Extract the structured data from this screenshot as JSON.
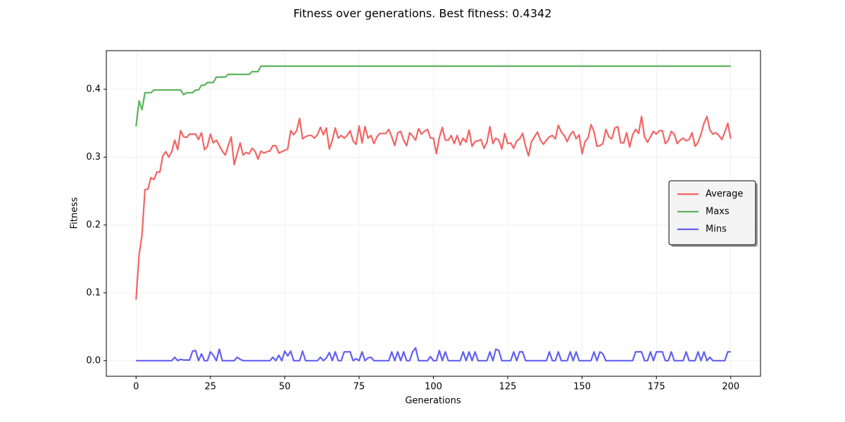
{
  "chart_data": {
    "type": "line",
    "title": "Fitness over generations. Best fitness: 0.4342",
    "xlabel": "Generations",
    "ylabel": "Fitness",
    "xlim": [
      -10,
      210
    ],
    "ylim": [
      -0.023,
      0.457
    ],
    "xticks": [
      0,
      25,
      50,
      75,
      100,
      125,
      150,
      175,
      200
    ],
    "yticks": [
      {
        "value": 0,
        "label": "0.0"
      },
      0.1,
      0.2,
      0.3,
      0.4
    ],
    "grid": true,
    "legend": "center right",
    "x": [
      0,
      1,
      2,
      3,
      4,
      5,
      6,
      7,
      8,
      9,
      10,
      11,
      12,
      13,
      14,
      15,
      16,
      17,
      18,
      19,
      20,
      21,
      22,
      23,
      24,
      25,
      26,
      27,
      28,
      29,
      30,
      31,
      32,
      33,
      34,
      35,
      36,
      37,
      38,
      39,
      40,
      41,
      42,
      43,
      44,
      45,
      46,
      47,
      48,
      49,
      50,
      51,
      52,
      53,
      54,
      55,
      56,
      57,
      58,
      59,
      60,
      61,
      62,
      63,
      64,
      65,
      66,
      67,
      68,
      69,
      70,
      71,
      72,
      73,
      74,
      75,
      76,
      77,
      78,
      79,
      80,
      81,
      82,
      83,
      84,
      85,
      86,
      87,
      88,
      89,
      90,
      91,
      92,
      93,
      94,
      95,
      96,
      97,
      98,
      99,
      100,
      101,
      102,
      103,
      104,
      105,
      106,
      107,
      108,
      109,
      110,
      111,
      112,
      113,
      114,
      115,
      116,
      117,
      118,
      119,
      120,
      121,
      122,
      123,
      124,
      125,
      126,
      127,
      128,
      129,
      130,
      131,
      132,
      133,
      134,
      135,
      136,
      137,
      138,
      139,
      140,
      141,
      142,
      143,
      144,
      145,
      146,
      147,
      148,
      149,
      150,
      151,
      152,
      153,
      154,
      155,
      156,
      157,
      158,
      159,
      160,
      161,
      162,
      163,
      164,
      165,
      166,
      167,
      168,
      169,
      170,
      171,
      172,
      173,
      174,
      175,
      176,
      177,
      178,
      179,
      180,
      181,
      182,
      183,
      184,
      185,
      186,
      187,
      188,
      189,
      190,
      191,
      192,
      193,
      194,
      195,
      196,
      197,
      198,
      199,
      200
    ],
    "series": [
      {
        "name": "Average",
        "color": "#f26464",
        "values": [
          0.09,
          0.155,
          0.185,
          0.252,
          0.253,
          0.27,
          0.267,
          0.278,
          0.278,
          0.302,
          0.308,
          0.3,
          0.308,
          0.325,
          0.311,
          0.339,
          0.33,
          0.329,
          0.334,
          0.334,
          0.334,
          0.326,
          0.336,
          0.311,
          0.316,
          0.334,
          0.321,
          0.325,
          0.317,
          0.309,
          0.303,
          0.317,
          0.33,
          0.289,
          0.305,
          0.321,
          0.303,
          0.307,
          0.305,
          0.313,
          0.309,
          0.297,
          0.309,
          0.306,
          0.308,
          0.309,
          0.317,
          0.317,
          0.306,
          0.308,
          0.31,
          0.312,
          0.339,
          0.333,
          0.339,
          0.357,
          0.327,
          0.33,
          0.332,
          0.332,
          0.328,
          0.333,
          0.344,
          0.333,
          0.343,
          0.312,
          0.325,
          0.343,
          0.328,
          0.332,
          0.328,
          0.332,
          0.339,
          0.324,
          0.319,
          0.346,
          0.321,
          0.345,
          0.328,
          0.332,
          0.32,
          0.33,
          0.335,
          0.335,
          0.335,
          0.341,
          0.33,
          0.317,
          0.336,
          0.338,
          0.325,
          0.317,
          0.336,
          0.331,
          0.325,
          0.342,
          0.334,
          0.338,
          0.341,
          0.328,
          0.328,
          0.305,
          0.329,
          0.344,
          0.325,
          0.325,
          0.332,
          0.32,
          0.332,
          0.318,
          0.328,
          0.322,
          0.34,
          0.316,
          0.323,
          0.324,
          0.326,
          0.313,
          0.322,
          0.345,
          0.32,
          0.328,
          0.325,
          0.312,
          0.335,
          0.32,
          0.321,
          0.313,
          0.324,
          0.327,
          0.335,
          0.316,
          0.302,
          0.323,
          0.33,
          0.337,
          0.325,
          0.319,
          0.325,
          0.33,
          0.332,
          0.327,
          0.347,
          0.337,
          0.332,
          0.323,
          0.333,
          0.338,
          0.327,
          0.333,
          0.305,
          0.323,
          0.328,
          0.348,
          0.338,
          0.316,
          0.317,
          0.32,
          0.341,
          0.33,
          0.327,
          0.343,
          0.345,
          0.321,
          0.321,
          0.336,
          0.315,
          0.333,
          0.341,
          0.335,
          0.36,
          0.33,
          0.322,
          0.33,
          0.338,
          0.334,
          0.339,
          0.339,
          0.32,
          0.325,
          0.338,
          0.334,
          0.32,
          0.325,
          0.328,
          0.324,
          0.326,
          0.336,
          0.316,
          0.322,
          0.334,
          0.35,
          0.36,
          0.34,
          0.334,
          0.336,
          0.332,
          0.326,
          0.337,
          0.35,
          0.327
        ]
      },
      {
        "name": "Maxs",
        "color": "#5cb35c",
        "values": [
          0.345,
          0.383,
          0.37,
          0.395,
          0.395,
          0.395,
          0.399,
          0.399,
          0.399,
          0.399,
          0.399,
          0.399,
          0.399,
          0.399,
          0.399,
          0.399,
          0.392,
          0.395,
          0.395,
          0.395,
          0.399,
          0.399,
          0.406,
          0.406,
          0.41,
          0.41,
          0.41,
          0.418,
          0.418,
          0.418,
          0.418,
          0.422,
          0.422,
          0.422,
          0.422,
          0.422,
          0.422,
          0.422,
          0.422,
          0.426,
          0.426,
          0.426,
          0.4342,
          0.4342,
          0.4342,
          0.4342,
          0.4342,
          0.4342,
          0.4342,
          0.4342,
          0.4342,
          0.4342,
          0.4342,
          0.4342,
          0.4342,
          0.4342,
          0.4342,
          0.4342,
          0.4342,
          0.4342,
          0.4342,
          0.4342,
          0.4342,
          0.4342,
          0.4342,
          0.4342,
          0.4342,
          0.4342,
          0.4342,
          0.4342,
          0.4342,
          0.4342,
          0.4342,
          0.4342,
          0.4342,
          0.4342,
          0.4342,
          0.4342,
          0.4342,
          0.4342,
          0.4342,
          0.4342,
          0.4342,
          0.4342,
          0.4342,
          0.4342,
          0.4342,
          0.4342,
          0.4342,
          0.4342,
          0.4342,
          0.4342,
          0.4342,
          0.4342,
          0.4342,
          0.4342,
          0.4342,
          0.4342,
          0.4342,
          0.4342,
          0.4342,
          0.4342,
          0.4342,
          0.4342,
          0.4342,
          0.4342,
          0.4342,
          0.4342,
          0.4342,
          0.4342,
          0.4342,
          0.4342,
          0.4342,
          0.4342,
          0.4342,
          0.4342,
          0.4342,
          0.4342,
          0.4342,
          0.4342,
          0.4342,
          0.4342,
          0.4342,
          0.4342,
          0.4342,
          0.4342,
          0.4342,
          0.4342,
          0.4342,
          0.4342,
          0.4342,
          0.4342,
          0.4342,
          0.4342,
          0.4342,
          0.4342,
          0.4342,
          0.4342,
          0.4342,
          0.4342,
          0.4342,
          0.4342,
          0.4342,
          0.4342,
          0.4342,
          0.4342,
          0.4342,
          0.4342,
          0.4342,
          0.4342,
          0.4342,
          0.4342,
          0.4342,
          0.4342,
          0.4342,
          0.4342,
          0.4342,
          0.4342,
          0.4342,
          0.4342,
          0.4342,
          0.4342,
          0.4342,
          0.4342,
          0.4342,
          0.4342,
          0.4342,
          0.4342,
          0.4342,
          0.4342,
          0.4342,
          0.4342,
          0.4342,
          0.4342,
          0.4342,
          0.4342,
          0.4342,
          0.4342,
          0.4342,
          0.4342,
          0.4342,
          0.4342,
          0.4342,
          0.4342,
          0.4342,
          0.4342,
          0.4342,
          0.4342,
          0.4342,
          0.4342,
          0.4342,
          0.4342,
          0.4342,
          0.4342,
          0.4342,
          0.4342,
          0.4342,
          0.4342,
          0.4342,
          0.4342,
          0.4342
        ]
      },
      {
        "name": "Mins",
        "color": "#6060f2",
        "values": [
          0,
          0,
          0,
          0,
          0,
          0,
          0,
          0,
          0,
          0,
          0,
          0,
          0,
          0.005,
          0,
          0.002,
          0.001,
          0.001,
          0.001,
          0.014,
          0.015,
          0,
          0.01,
          0,
          0,
          0.013,
          0.008,
          0,
          0.017,
          0,
          0,
          0,
          0,
          0,
          0.005,
          0.002,
          0,
          0,
          0,
          0,
          0,
          0,
          0,
          0,
          0,
          0,
          0.005,
          0,
          0.008,
          0,
          0.014,
          0.007,
          0.014,
          0,
          0,
          0,
          0.014,
          0,
          0,
          0,
          0,
          0,
          0.005,
          0,
          0.004,
          0.012,
          0,
          0.013,
          0,
          0,
          0.013,
          0.013,
          0.013,
          0,
          0.003,
          0,
          0.013,
          0,
          0.004,
          0.005,
          0,
          0,
          0,
          0,
          0,
          0,
          0.013,
          0,
          0.013,
          0,
          0.013,
          0,
          0,
          0.013,
          0.019,
          0,
          0,
          0,
          0,
          0.006,
          0,
          0,
          0.015,
          0,
          0.013,
          0,
          0,
          0,
          0,
          0,
          0.013,
          0,
          0.013,
          0,
          0.013,
          0,
          0,
          0,
          0,
          0.013,
          0,
          0.017,
          0.015,
          0,
          0,
          0,
          0,
          0.013,
          0,
          0.013,
          0.013,
          0,
          0,
          0,
          0,
          0,
          0,
          0,
          0,
          0.013,
          0,
          0,
          0.013,
          0,
          0,
          0,
          0.013,
          0,
          0.013,
          0,
          0,
          0,
          0,
          0,
          0.013,
          0,
          0.013,
          0.01,
          0,
          0,
          0,
          0,
          0,
          0,
          0,
          0,
          0,
          0,
          0.013,
          0.013,
          0.013,
          0,
          0,
          0.013,
          0,
          0.013,
          0.013,
          0.013,
          0,
          0,
          0.013,
          0,
          0,
          0,
          0,
          0.013,
          0,
          0,
          0,
          0.013,
          0,
          0.013,
          0,
          0.005,
          0,
          0,
          0,
          0,
          0,
          0.013,
          0.013
        ]
      }
    ]
  }
}
